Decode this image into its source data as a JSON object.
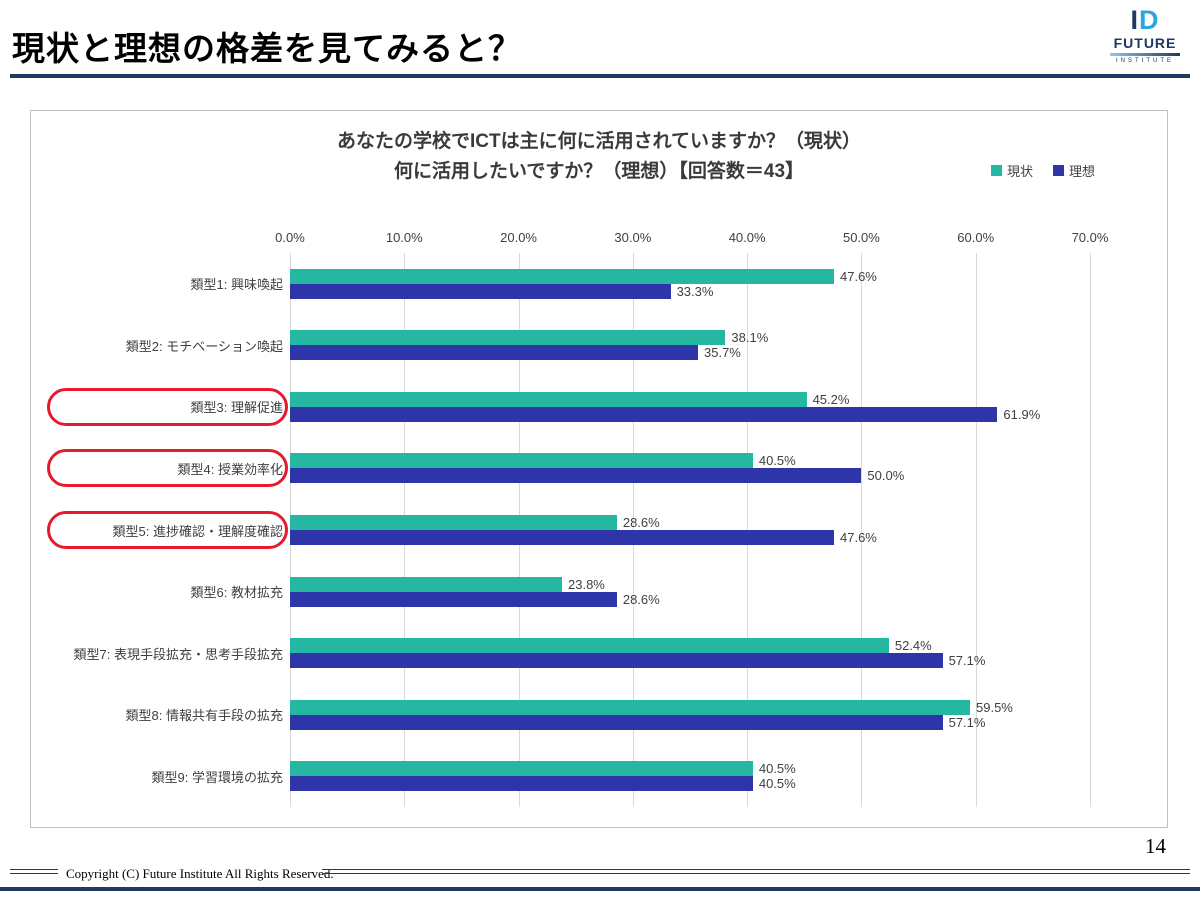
{
  "slide": {
    "title": "現状と理想の格差を見てみると？",
    "page_number": "14",
    "footer": "Copyright (C) Future Institute All Rights Reserved.",
    "logo": {
      "mark_i": "I",
      "mark_d": "D",
      "name": "FUTURE",
      "sub": "INSTITUTE"
    }
  },
  "colors": {
    "genjo_teal": "#26b7a2",
    "riso_blue": "#2e35a8",
    "highlight_red": "#e8192c",
    "navy_rule": "#1f3864",
    "gridline": "#d9d9d9"
  },
  "chart_data": {
    "type": "bar",
    "orientation": "horizontal",
    "title_line1": "あなたの学校でICTは主に何に活用されていますか？（現状）",
    "title_line2": "何に活用したいですか？（理想）【回答数＝43】",
    "categories": [
      "類型1: 興味喚起",
      "類型2: モチベーション喚起",
      "類型3: 理解促進",
      "類型4: 授業効率化",
      "類型5: 進捗確認・理解度確認",
      "類型6: 教材拡充",
      "類型7: 表現手段拡充・思考手段拡充",
      "類型8: 情報共有手段の拡充",
      "類型9: 学習環境の拡充"
    ],
    "series": [
      {
        "name": "現状",
        "color": "#26b7a2",
        "values": [
          47.6,
          38.1,
          45.2,
          40.5,
          28.6,
          23.8,
          52.4,
          59.5,
          40.5
        ]
      },
      {
        "name": "理想",
        "color": "#2e35a8",
        "values": [
          33.3,
          35.7,
          61.9,
          50.0,
          47.6,
          28.6,
          57.1,
          57.1,
          40.5
        ]
      }
    ],
    "value_label_format": "percent_one_decimal",
    "highlighted_categories": [
      2,
      3,
      4
    ],
    "x_ticks": [
      "0.0%",
      "10.0%",
      "20.0%",
      "30.0%",
      "40.0%",
      "50.0%",
      "60.0%",
      "70.0%"
    ],
    "xlim": [
      0,
      70
    ],
    "grid": true,
    "legend_position": "top-right"
  }
}
